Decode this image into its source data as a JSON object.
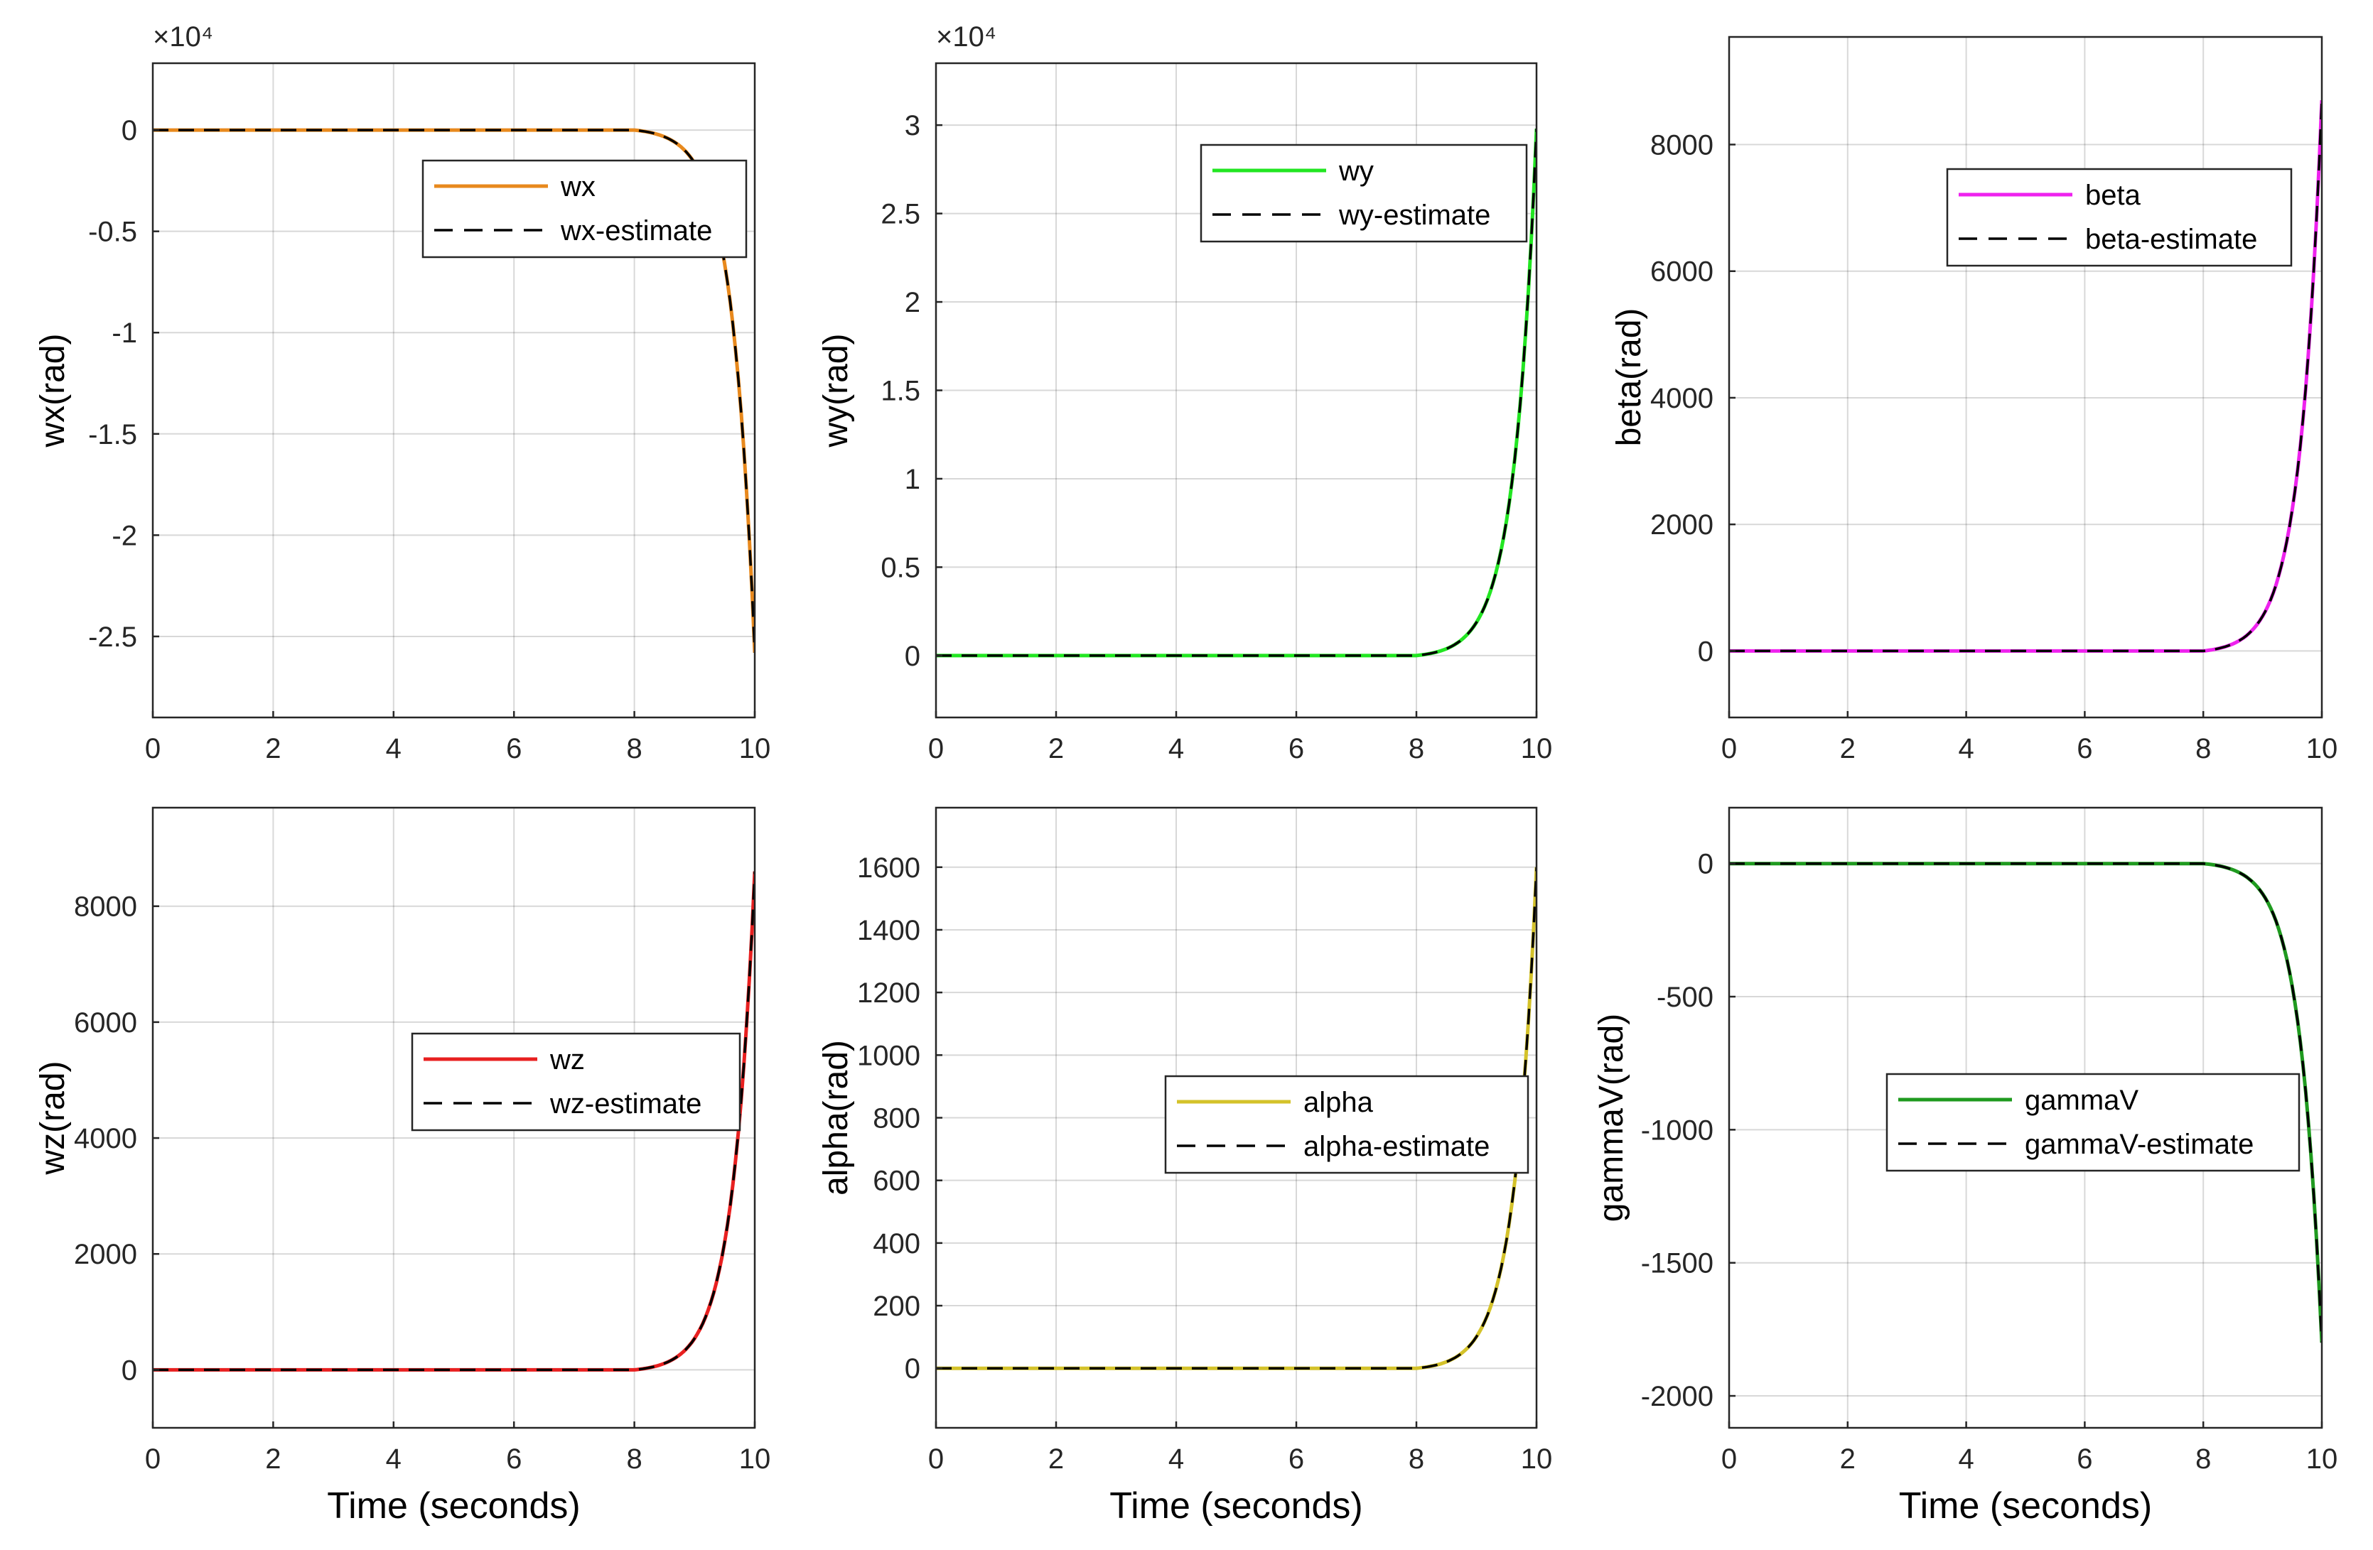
{
  "colors": {
    "background": "#ffffff",
    "axis": "#262626",
    "grid": "#262626",
    "tick_text": "#262626",
    "estimate_line": "#000000"
  },
  "chart_data": [
    {
      "id": "wx",
      "type": "line",
      "xlim": [
        0,
        10
      ],
      "ylim": [
        -29000,
        3300
      ],
      "xticks": [
        0,
        2,
        4,
        6,
        8,
        10
      ],
      "yticks": [
        0,
        -5000,
        -10000,
        -15000,
        -20000,
        -25000
      ],
      "ytick_labels": [
        "0",
        "-0.5",
        "-1",
        "-1.5",
        "-2",
        "-2.5"
      ],
      "exponent_label": "×10⁴",
      "ylabel": "wx(rad)",
      "xlabel": "",
      "grid": true,
      "legend_position": "north-east",
      "curve": {
        "final_value": -25800,
        "onset": 8.0,
        "shape": "exponential"
      },
      "series": [
        {
          "name": "wx",
          "color": "#e8891d",
          "style": "solid"
        },
        {
          "name": "wx-estimate",
          "color": "#000000",
          "style": "dashed"
        }
      ]
    },
    {
      "id": "wy",
      "type": "line",
      "xlim": [
        0,
        10
      ],
      "ylim": [
        -3500,
        33500
      ],
      "xticks": [
        0,
        2,
        4,
        6,
        8,
        10
      ],
      "yticks": [
        0,
        5000,
        10000,
        15000,
        20000,
        25000,
        30000
      ],
      "ytick_labels": [
        "0",
        "0.5",
        "1",
        "1.5",
        "2",
        "2.5",
        "3"
      ],
      "exponent_label": "×10⁴",
      "ylabel": "wy(rad)",
      "xlabel": "",
      "grid": true,
      "legend_position": "north-east",
      "curve": {
        "final_value": 29800,
        "onset": 8.0,
        "shape": "exponential"
      },
      "series": [
        {
          "name": "wy",
          "color": "#22e622",
          "style": "solid"
        },
        {
          "name": "wy-estimate",
          "color": "#000000",
          "style": "dashed"
        }
      ]
    },
    {
      "id": "beta",
      "type": "line",
      "xlim": [
        0,
        10
      ],
      "ylim": [
        -1050,
        9700
      ],
      "xticks": [
        0,
        2,
        4,
        6,
        8,
        10
      ],
      "yticks": [
        0,
        2000,
        4000,
        6000,
        8000
      ],
      "ytick_labels": [
        "0",
        "2000",
        "4000",
        "6000",
        "8000"
      ],
      "exponent_label": "",
      "ylabel": "beta(rad)",
      "xlabel": "",
      "grid": true,
      "legend_position": "north-east",
      "curve": {
        "final_value": 8700,
        "onset": 8.0,
        "shape": "exponential"
      },
      "series": [
        {
          "name": "beta",
          "color": "#ee22ee",
          "style": "solid"
        },
        {
          "name": "beta-estimate",
          "color": "#000000",
          "style": "dashed"
        }
      ]
    },
    {
      "id": "wz",
      "type": "line",
      "xlim": [
        0,
        10
      ],
      "ylim": [
        -1000,
        9700
      ],
      "xticks": [
        0,
        2,
        4,
        6,
        8,
        10
      ],
      "yticks": [
        0,
        2000,
        4000,
        6000,
        8000
      ],
      "ytick_labels": [
        "0",
        "2000",
        "4000",
        "6000",
        "8000"
      ],
      "exponent_label": "",
      "ylabel": "wz(rad)",
      "xlabel": "Time (seconds)",
      "grid": true,
      "legend_position": "east",
      "curve": {
        "final_value": 8600,
        "onset": 8.0,
        "shape": "exponential"
      },
      "series": [
        {
          "name": "wz",
          "color": "#e82020",
          "style": "solid"
        },
        {
          "name": "wz-estimate",
          "color": "#000000",
          "style": "dashed"
        }
      ]
    },
    {
      "id": "alpha",
      "type": "line",
      "xlim": [
        0,
        10
      ],
      "ylim": [
        -190,
        1790
      ],
      "xticks": [
        0,
        2,
        4,
        6,
        8,
        10
      ],
      "yticks": [
        0,
        200,
        400,
        600,
        800,
        1000,
        1200,
        1400,
        1600
      ],
      "ytick_labels": [
        "0",
        "200",
        "400",
        "600",
        "800",
        "1000",
        "1200",
        "1400",
        "1600"
      ],
      "exponent_label": "",
      "ylabel": "alpha(rad)",
      "xlabel": "Time (seconds)",
      "grid": true,
      "legend_position": "south-east",
      "curve": {
        "final_value": 1600,
        "onset": 8.0,
        "shape": "exponential"
      },
      "series": [
        {
          "name": "alpha",
          "color": "#d4c22a",
          "style": "solid"
        },
        {
          "name": "alpha-estimate",
          "color": "#000000",
          "style": "dashed"
        }
      ]
    },
    {
      "id": "gammaV",
      "type": "line",
      "xlim": [
        0,
        10
      ],
      "ylim": [
        -2120,
        210
      ],
      "xticks": [
        0,
        2,
        4,
        6,
        8,
        10
      ],
      "yticks": [
        0,
        -500,
        -1000,
        -1500,
        -2000
      ],
      "ytick_labels": [
        "0",
        "-500",
        "-1000",
        "-1500",
        "-2000"
      ],
      "exponent_label": "",
      "ylabel": "gammaV(rad)",
      "xlabel": "Time (seconds)",
      "grid": true,
      "legend_position": "east",
      "curve": {
        "final_value": -1800,
        "onset": 8.0,
        "shape": "exponential"
      },
      "series": [
        {
          "name": "gammaV",
          "color": "#1f9a1f",
          "style": "solid"
        },
        {
          "name": "gammaV-estimate",
          "color": "#000000",
          "style": "dashed"
        }
      ]
    }
  ]
}
